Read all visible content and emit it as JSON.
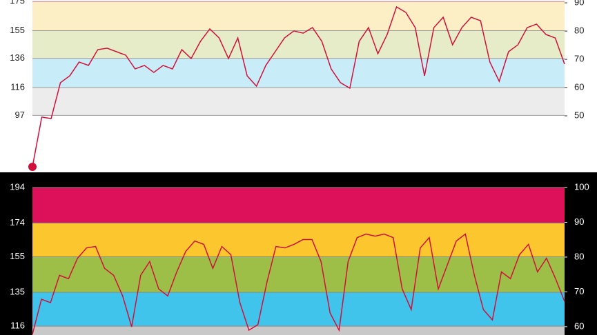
{
  "chart_data": [
    {
      "type": "line",
      "background": "#ffffff",
      "tick_color": "#222222",
      "ylim": [
        58,
        176
      ],
      "yticks": [
        97,
        116,
        136,
        155,
        175
      ],
      "y2lim": [
        30,
        91
      ],
      "y2ticks": [
        50,
        60,
        70,
        80,
        90
      ],
      "zone_colors": [
        "#ffffff",
        "#ececec",
        "#c8ecf8",
        "#e6ecc8",
        "#fcefc6"
      ],
      "grid": true,
      "grid_colors": [
        "#9a9a9a",
        "#9a9a9a",
        "#9a9a9a",
        "#9a9a9a",
        "#d07098"
      ],
      "start_marker": true,
      "series": [
        {
          "color": "#d0103a",
          "values": [
            61.8,
            95.8,
            94.8,
            119.4,
            124.1,
            133.5,
            131.2,
            142,
            143,
            140.6,
            138.2,
            128.8,
            131.2,
            126.4,
            131.2,
            128.8,
            142,
            135.9,
            147.7,
            156.2,
            150,
            135.9,
            150,
            124.1,
            117,
            131.2,
            140.6,
            150,
            154.8,
            153.3,
            157.1,
            147.7,
            128.8,
            119.4,
            115.6,
            147.7,
            157.1,
            139.2,
            152.4,
            171.3,
            167.5,
            157.1,
            124.1,
            157.1,
            164.2,
            145.3,
            157.1,
            164.2,
            161.8,
            133.5,
            120.3,
            140.6,
            145.3,
            157.1,
            159.5,
            152.4,
            150,
            132.1
          ]
        }
      ]
    },
    {
      "type": "line",
      "background": "#000000",
      "tick_color": "#ffffff",
      "ylim": [
        111,
        194
      ],
      "yticks": [
        116,
        135,
        155,
        174,
        194
      ],
      "y2lim": [
        57.6,
        100
      ],
      "y2ticks": [
        60,
        70,
        80,
        90,
        100
      ],
      "zone_colors": [
        "#c8c8c8",
        "#40c4ec",
        "#9dbf48",
        "#fcc62f",
        "#dc1159"
      ],
      "grid": true,
      "grid_colors": [
        "#8a8a8a",
        "#8a8a8a",
        "#8a8a8a",
        "#8a8a8a",
        "#8a8a8a"
      ],
      "start_marker": false,
      "series": [
        {
          "color": "#d0103a",
          "values": [
            111.4,
            131.1,
            129.2,
            144.6,
            142.7,
            154.2,
            160,
            160.8,
            148.5,
            144.6,
            133,
            115.6,
            144.6,
            152.3,
            136.9,
            133,
            146.5,
            158.1,
            163.9,
            162,
            148.5,
            160.8,
            156.2,
            129.2,
            113.7,
            116.8,
            140.7,
            160.8,
            160,
            162,
            164.7,
            164.7,
            152.3,
            123.4,
            113.7,
            152.3,
            165.8,
            167.8,
            166.6,
            167.8,
            165.8,
            136.9,
            125.3,
            160,
            165.8,
            136.9,
            150.4,
            163.9,
            167.8,
            144.6,
            125.3,
            119.5,
            146.5,
            142.7,
            156.2,
            162,
            146.5,
            154.2,
            142.7,
            129.9
          ]
        }
      ]
    }
  ]
}
